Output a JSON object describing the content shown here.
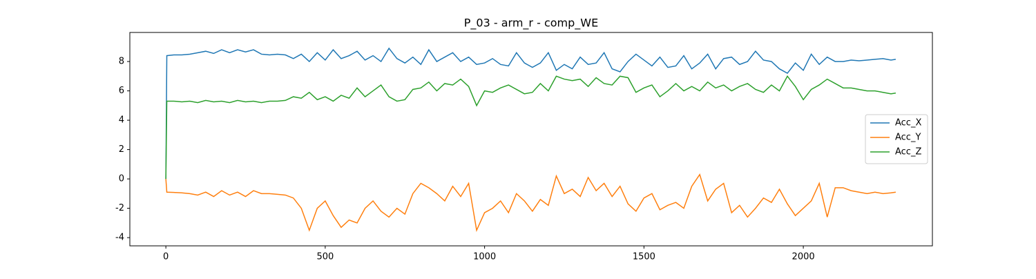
{
  "chart_data": {
    "type": "line",
    "title": "P_03 - arm_r - comp_WE",
    "x": [
      0,
      3,
      25,
      50,
      75,
      100,
      125,
      150,
      175,
      200,
      225,
      250,
      275,
      300,
      325,
      350,
      375,
      400,
      425,
      450,
      475,
      500,
      525,
      550,
      575,
      600,
      625,
      650,
      675,
      700,
      725,
      750,
      775,
      800,
      825,
      850,
      875,
      900,
      925,
      950,
      975,
      1000,
      1025,
      1050,
      1075,
      1100,
      1125,
      1150,
      1175,
      1200,
      1225,
      1250,
      1275,
      1300,
      1325,
      1350,
      1375,
      1400,
      1425,
      1450,
      1475,
      1500,
      1525,
      1550,
      1575,
      1600,
      1625,
      1650,
      1675,
      1700,
      1725,
      1750,
      1775,
      1800,
      1825,
      1850,
      1875,
      1900,
      1925,
      1950,
      1975,
      2000,
      2025,
      2050,
      2075,
      2100,
      2125,
      2150,
      2175,
      2200,
      2225,
      2250,
      2275,
      2290
    ],
    "series": [
      {
        "name": "Acc_X",
        "color": "#1f77b4",
        "values": [
          0,
          8.4,
          8.45,
          8.45,
          8.5,
          8.6,
          8.7,
          8.55,
          8.8,
          8.6,
          8.8,
          8.65,
          8.8,
          8.5,
          8.45,
          8.5,
          8.45,
          8.2,
          8.5,
          8.0,
          8.6,
          8.1,
          8.8,
          8.2,
          8.4,
          8.7,
          8.1,
          8.4,
          8.0,
          8.9,
          8.2,
          7.9,
          8.3,
          7.8,
          8.8,
          8.0,
          8.3,
          8.6,
          8.0,
          8.3,
          7.8,
          7.9,
          8.2,
          7.8,
          7.7,
          8.6,
          7.9,
          7.6,
          7.9,
          8.6,
          7.4,
          7.8,
          7.5,
          8.3,
          7.8,
          7.9,
          8.6,
          7.5,
          7.3,
          8.0,
          8.5,
          8.1,
          7.7,
          8.3,
          7.6,
          7.7,
          8.4,
          7.5,
          7.9,
          8.5,
          7.5,
          8.2,
          8.3,
          7.8,
          8.0,
          8.7,
          8.1,
          8.0,
          7.5,
          7.2,
          7.9,
          7.4,
          8.5,
          7.8,
          8.3,
          8.0,
          8.0,
          8.1,
          8.05,
          8.1,
          8.15,
          8.2,
          8.1,
          8.15
        ]
      },
      {
        "name": "Acc_Y",
        "color": "#ff7f0e",
        "values": [
          0,
          -0.9,
          -0.92,
          -0.95,
          -1.0,
          -1.1,
          -0.9,
          -1.2,
          -0.8,
          -1.1,
          -0.9,
          -1.2,
          -0.8,
          -1.0,
          -1.0,
          -1.05,
          -1.1,
          -1.3,
          -2.0,
          -3.5,
          -2.0,
          -1.5,
          -2.5,
          -3.3,
          -2.8,
          -3.0,
          -2.0,
          -1.5,
          -2.2,
          -2.6,
          -2.0,
          -2.4,
          -1.0,
          -0.3,
          -0.6,
          -1.0,
          -1.5,
          -0.5,
          -1.2,
          -0.3,
          -3.5,
          -2.3,
          -2.0,
          -1.5,
          -2.3,
          -1.0,
          -1.5,
          -2.2,
          -1.4,
          -1.8,
          0.2,
          -1.0,
          -0.7,
          -1.2,
          0.1,
          -0.8,
          -0.3,
          -1.2,
          -0.5,
          -1.7,
          -2.2,
          -1.3,
          -1.0,
          -2.1,
          -1.8,
          -1.6,
          -2.0,
          -0.5,
          0.3,
          -1.5,
          -0.7,
          -0.3,
          -2.3,
          -1.8,
          -2.6,
          -2.0,
          -1.3,
          -1.6,
          -0.7,
          -1.7,
          -2.5,
          -2.0,
          -1.5,
          -0.3,
          -2.6,
          -0.6,
          -0.6,
          -0.8,
          -0.9,
          -1.0,
          -0.9,
          -1.0,
          -0.95,
          -0.9
        ]
      },
      {
        "name": "Acc_Z",
        "color": "#2ca02c",
        "values": [
          0,
          5.3,
          5.3,
          5.25,
          5.3,
          5.2,
          5.35,
          5.25,
          5.3,
          5.2,
          5.35,
          5.25,
          5.3,
          5.2,
          5.3,
          5.3,
          5.35,
          5.6,
          5.5,
          5.9,
          5.4,
          5.6,
          5.3,
          5.7,
          5.5,
          6.2,
          5.6,
          6.0,
          6.4,
          5.6,
          5.3,
          5.4,
          6.1,
          6.2,
          6.6,
          6.0,
          6.5,
          6.4,
          6.8,
          6.3,
          5.0,
          6.0,
          5.9,
          6.2,
          6.4,
          6.1,
          5.8,
          5.9,
          6.5,
          6.0,
          7.0,
          6.8,
          6.7,
          6.8,
          6.3,
          6.9,
          6.5,
          6.4,
          7.0,
          6.9,
          5.9,
          6.2,
          6.4,
          5.6,
          6.0,
          6.5,
          6.0,
          6.3,
          6.0,
          6.6,
          6.2,
          6.4,
          6.0,
          6.3,
          6.5,
          6.1,
          5.9,
          6.4,
          6.0,
          7.0,
          6.3,
          5.4,
          6.1,
          6.4,
          6.8,
          6.5,
          6.2,
          6.2,
          6.1,
          6.0,
          6.0,
          5.9,
          5.8,
          5.85
        ]
      }
    ],
    "xlim": [
      -113,
      2405
    ],
    "ylim": [
      -4.56,
      9.98
    ],
    "xticks": [
      0,
      500,
      1000,
      1500,
      2000
    ],
    "yticks": [
      -4,
      -2,
      0,
      2,
      4,
      6,
      8
    ],
    "legend": "center right"
  }
}
